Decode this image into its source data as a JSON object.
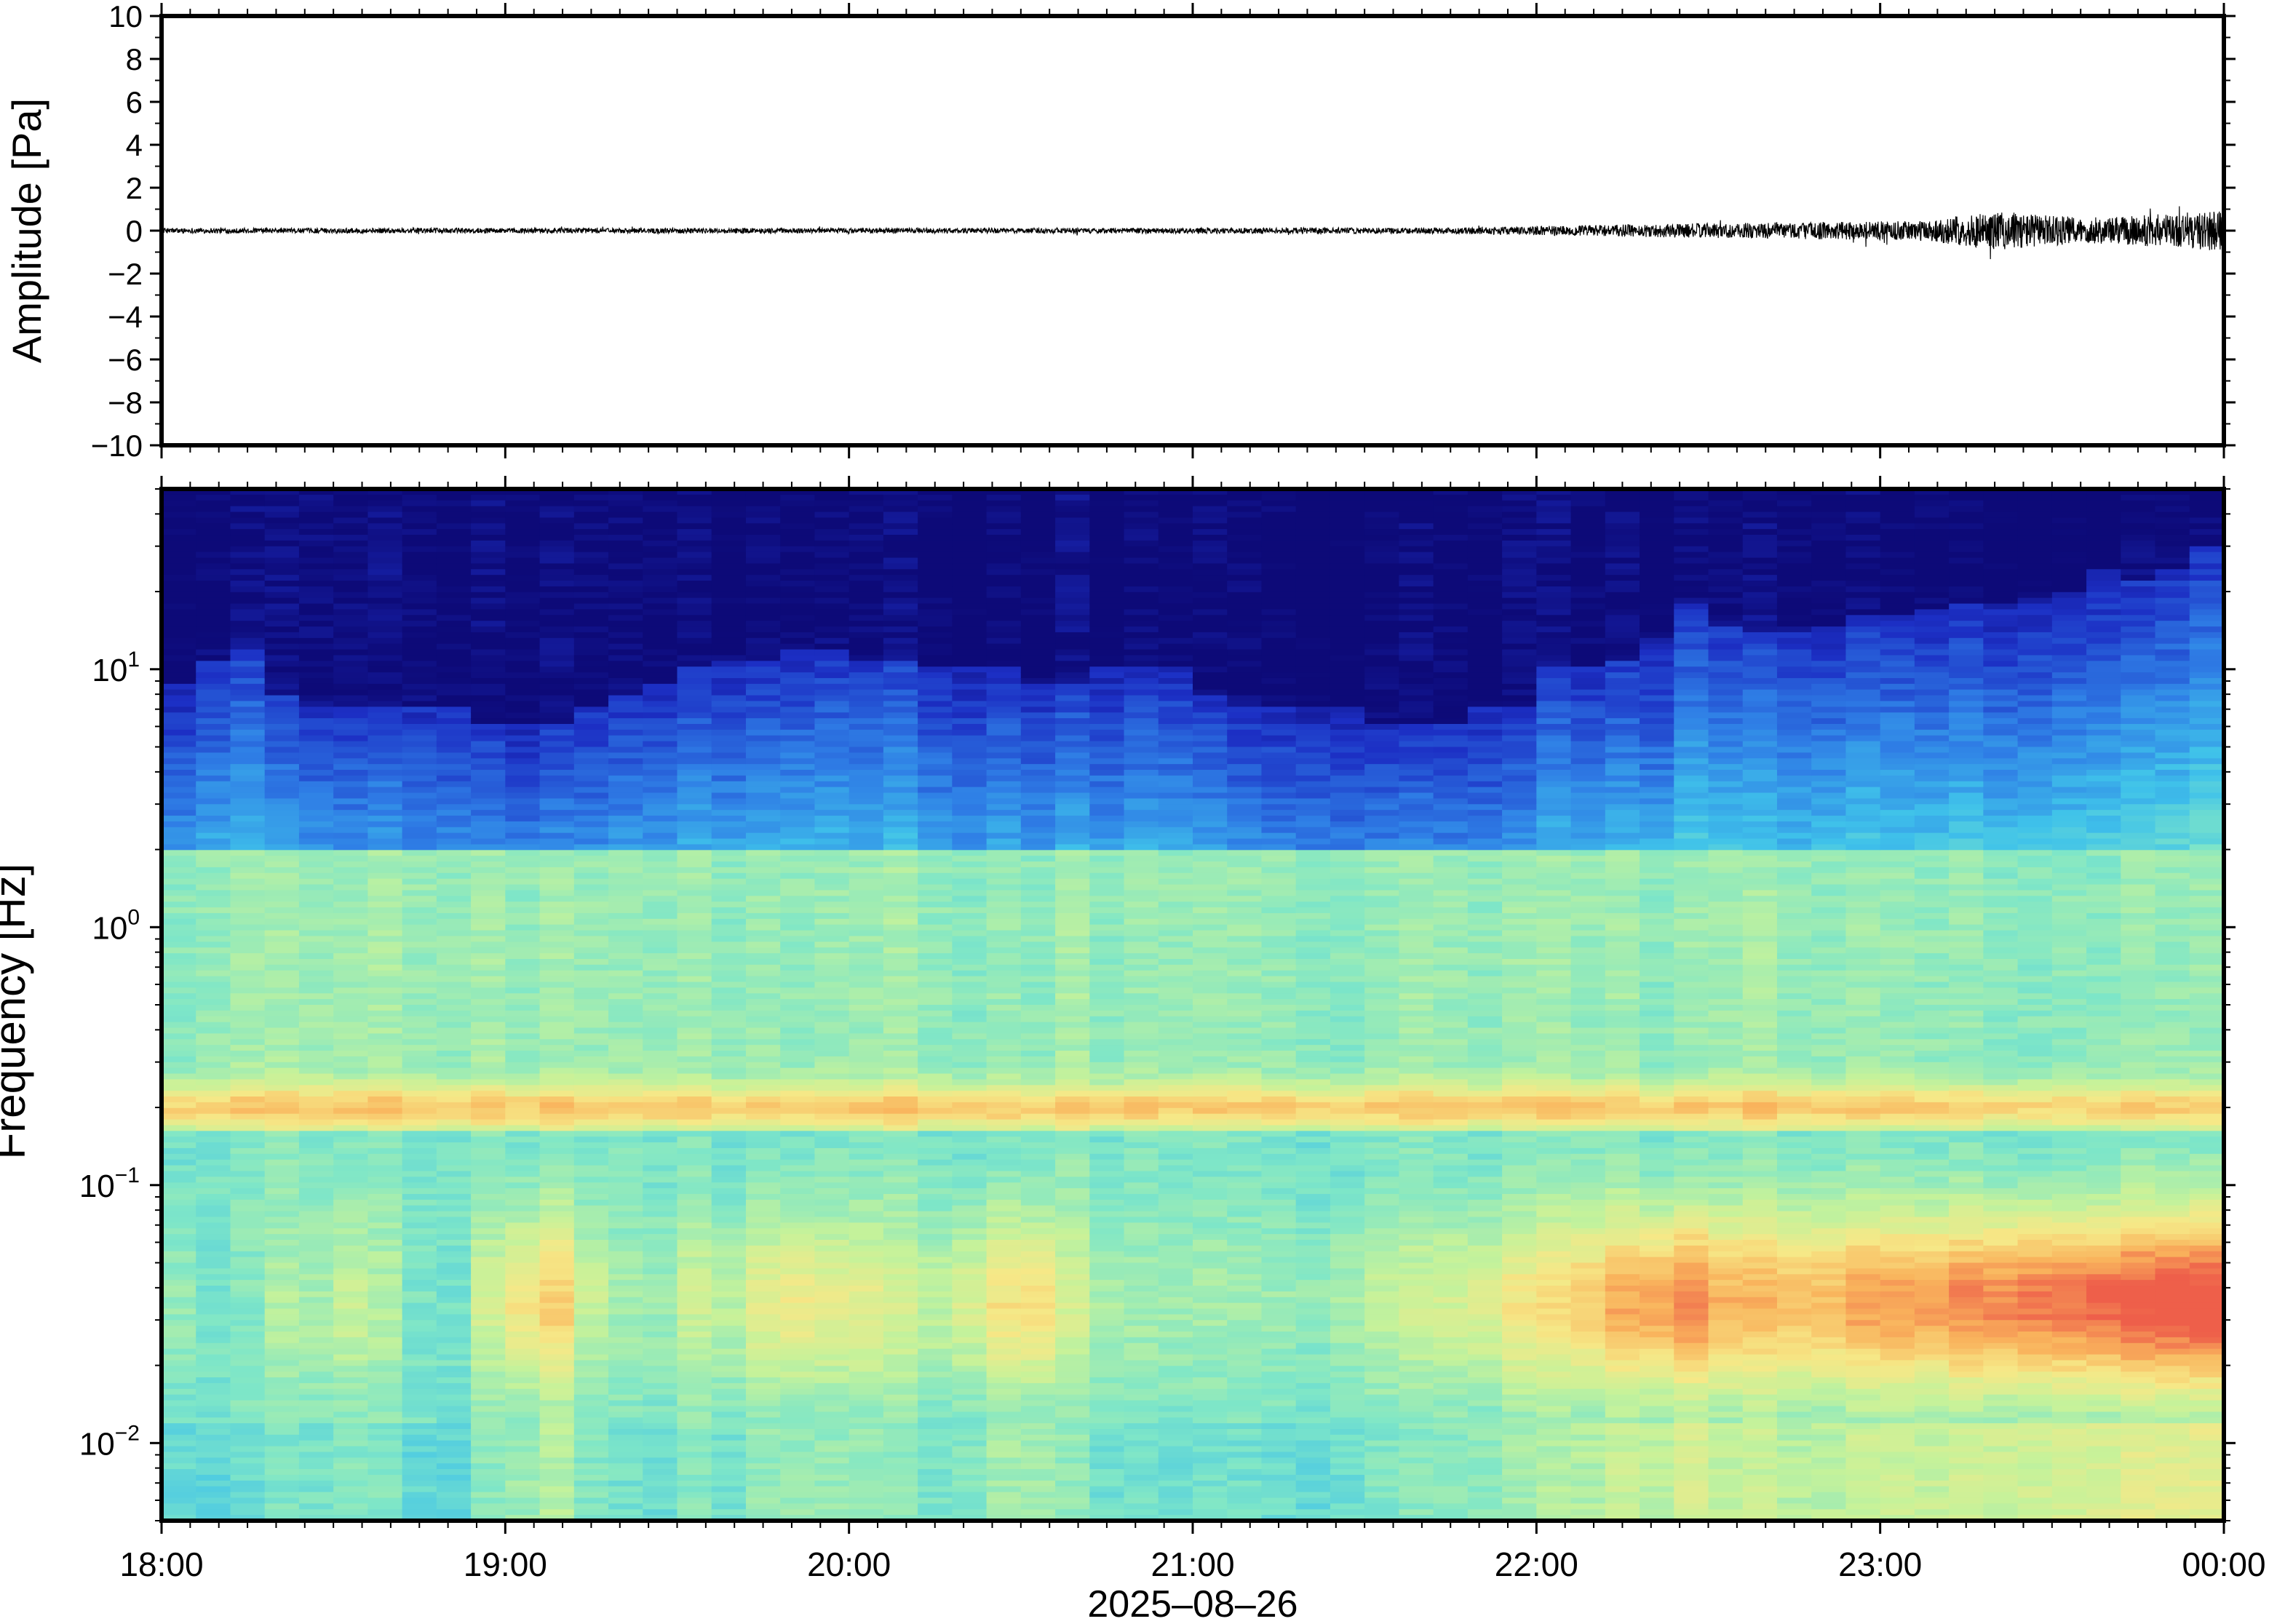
{
  "figure": {
    "xlabel": "2025–08–26",
    "x_ticks": [
      "18:00",
      "19:00",
      "20:00",
      "21:00",
      "22:00",
      "23:00",
      "00:00"
    ]
  },
  "chart_data": [
    {
      "type": "line",
      "ylabel": "Amplitude [Pa]",
      "ylim": [
        -10,
        10
      ],
      "y_ticks": [
        "10",
        "8",
        "6",
        "4",
        "2",
        "0",
        "−2",
        "−4",
        "−6",
        "−8",
        "−10"
      ],
      "x_range": [
        "18:00",
        "00:00"
      ],
      "envelope_x_hours": [
        0,
        1,
        2,
        3,
        3.8,
        4.3,
        4.8,
        5.1,
        5.35,
        5.6,
        5.85,
        6
      ],
      "envelope_y": [
        0.12,
        0.12,
        0.12,
        0.13,
        0.15,
        0.3,
        0.4,
        0.45,
        0.9,
        0.6,
        0.8,
        1.0
      ],
      "series": [
        {
          "values_note": ""
        }
      ]
    },
    {
      "type": "heatmap",
      "ylabel": "Frequency [Hz]",
      "y_scale": "log",
      "ylim_hz": [
        0.005,
        50
      ],
      "y_ticks": [
        {
          "base": "10",
          "exp": "1",
          "value": 10
        },
        {
          "base": "10",
          "exp": "0",
          "value": 1
        },
        {
          "base": "10",
          "exp": "−1",
          "value": 0.1
        },
        {
          "base": "10",
          "exp": "−2",
          "value": 0.01
        }
      ],
      "colormap": [
        "#0d0a78",
        "#1c2fc4",
        "#2f7fe6",
        "#3fc2ea",
        "#7ee6c8",
        "#c6f29a",
        "#f6e887",
        "#f9b35c",
        "#ee5f4a"
      ],
      "columns_per_hour": 10,
      "top_cutoff_hz": [
        9,
        11,
        12,
        8,
        7,
        7,
        7,
        7,
        7,
        6,
        6,
        6,
        7,
        8,
        9,
        10,
        11,
        11,
        12,
        12,
        11,
        11,
        10,
        10,
        10,
        9,
        9,
        10,
        10,
        10,
        8,
        7,
        7,
        7,
        7,
        6,
        6,
        6,
        7,
        7,
        10,
        10,
        11,
        13,
        18,
        15,
        14,
        14,
        15,
        16,
        16,
        17,
        18,
        18,
        19,
        20,
        24,
        22,
        25,
        30
      ],
      "low_band_intensity": [
        0.55,
        0.5,
        0.5,
        0.55,
        0.55,
        0.6,
        0.55,
        0.5,
        0.5,
        0.6,
        0.7,
        0.72,
        0.6,
        0.55,
        0.55,
        0.6,
        0.6,
        0.65,
        0.68,
        0.65,
        0.65,
        0.6,
        0.6,
        0.65,
        0.7,
        0.72,
        0.6,
        0.58,
        0.55,
        0.55,
        0.55,
        0.55,
        0.55,
        0.55,
        0.58,
        0.6,
        0.6,
        0.62,
        0.65,
        0.68,
        0.7,
        0.74,
        0.78,
        0.82,
        0.84,
        0.78,
        0.76,
        0.76,
        0.78,
        0.8,
        0.82,
        0.82,
        0.84,
        0.86,
        0.88,
        0.88,
        0.9,
        0.9,
        0.92,
        0.92
      ]
    }
  ]
}
